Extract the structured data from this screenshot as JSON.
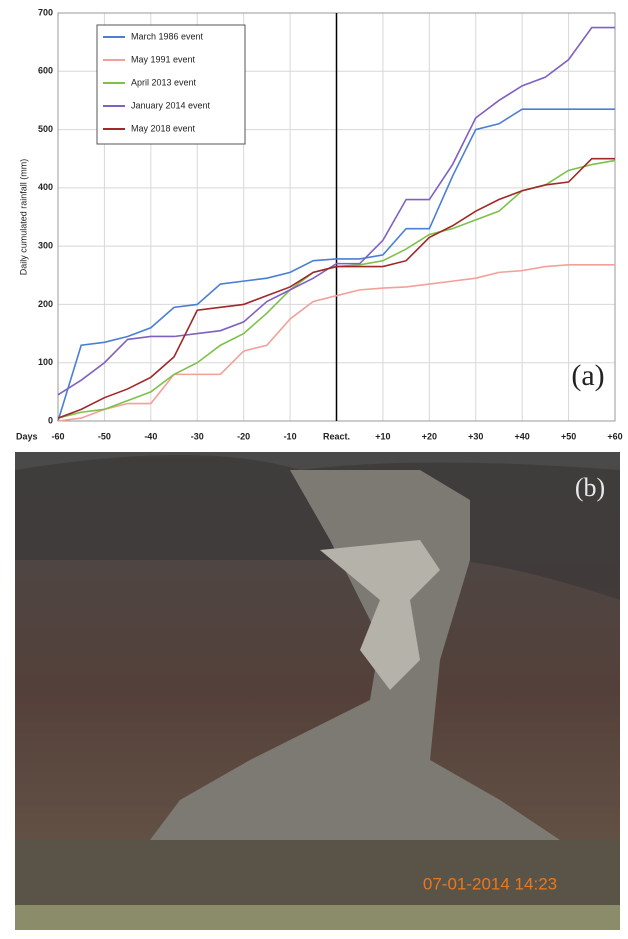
{
  "chart_data": {
    "type": "line",
    "y_label": "Daily cumulated rainfall (mm)",
    "x_label": "Days",
    "annotation": "(a)",
    "x": [
      -60,
      -55,
      -50,
      -45,
      -40,
      -35,
      -30,
      -25,
      -20,
      -15,
      -10,
      -5,
      0,
      5,
      10,
      15,
      20,
      25,
      30,
      35,
      40,
      45,
      50,
      55,
      60
    ],
    "series": [
      {
        "name": "March 1986 event",
        "color": "#4a7fd4",
        "values": [
          0,
          130,
          135,
          145,
          160,
          195,
          200,
          235,
          240,
          245,
          255,
          275,
          278,
          278,
          285,
          330,
          330,
          420,
          500,
          510,
          535,
          535,
          535,
          535,
          535
        ]
      },
      {
        "name": "May 1991 event",
        "color": "#f2a09a",
        "values": [
          0,
          5,
          20,
          30,
          30,
          80,
          80,
          80,
          120,
          130,
          175,
          205,
          215,
          225,
          228,
          230,
          235,
          240,
          245,
          255,
          258,
          265,
          268,
          268,
          268
        ]
      },
      {
        "name": "April 2013 event",
        "color": "#7cc24a",
        "values": [
          5,
          15,
          20,
          35,
          50,
          80,
          100,
          130,
          150,
          185,
          225,
          255,
          265,
          268,
          275,
          295,
          320,
          330,
          345,
          360,
          395,
          405,
          430,
          440,
          447
        ]
      },
      {
        "name": "January 2014 event",
        "color": "#8060c0",
        "values": [
          45,
          70,
          100,
          140,
          145,
          145,
          150,
          155,
          170,
          205,
          225,
          245,
          270,
          270,
          310,
          380,
          380,
          440,
          520,
          550,
          575,
          590,
          620,
          675,
          675
        ]
      },
      {
        "name": "May 2018 event",
        "color": "#a02828",
        "values": [
          5,
          20,
          40,
          55,
          75,
          110,
          190,
          195,
          200,
          215,
          230,
          255,
          265,
          265,
          265,
          275,
          315,
          335,
          360,
          380,
          395,
          405,
          410,
          450,
          450
        ]
      }
    ],
    "xlim": [
      -60,
      60
    ],
    "xticks": [
      -60,
      -50,
      -40,
      -30,
      -20,
      -10,
      {
        "value": 0,
        "label": "React."
      },
      {
        "value": 10,
        "label": "+10"
      },
      {
        "value": 20,
        "label": "+20"
      },
      {
        "value": 30,
        "label": "+30"
      },
      {
        "value": 40,
        "label": "+40"
      },
      {
        "value": 50,
        "label": "+50"
      },
      {
        "value": 60,
        "label": "+60"
      }
    ],
    "ylim": [
      0,
      700
    ],
    "yticks": [
      0,
      100,
      200,
      300,
      400,
      500,
      600,
      700
    ],
    "grid": true,
    "legend": "upper left"
  },
  "photo": {
    "label": "(b)",
    "timestamp": "07-01-2014 14:23"
  }
}
